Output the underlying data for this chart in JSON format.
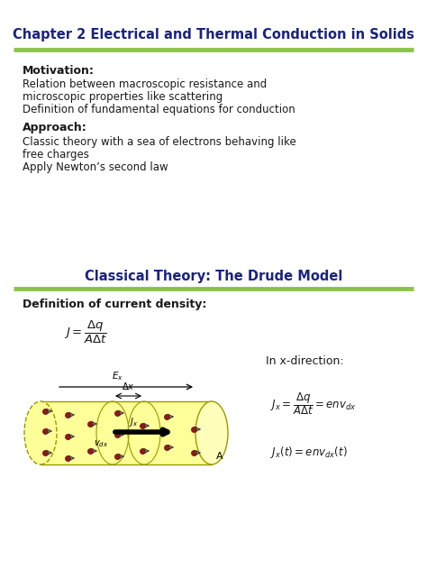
{
  "title": "Chapter 2 Electrical and Thermal Conduction in Solids",
  "title_color": "#1a237e",
  "title_fontsize": 10.5,
  "line_color": "#8bc34a",
  "section2_title": "Classical Theory: The Drude Model",
  "section2_color": "#1a237e",
  "section2_fontsize": 10.5,
  "motivation_header": "Motivation:",
  "motivation_lines": [
    "Relation between macroscopic resistance and",
    "microscopic properties like scattering",
    "Definition of fundamental equations for conduction"
  ],
  "approach_header": "Approach:",
  "approach_lines": [
    "Classic theory with a sea of electrons behaving like",
    "free charges",
    "Apply Newton’s second law"
  ],
  "body_fontsize": 8.5,
  "header_fontsize": 9.0,
  "def_text": "Definition of current density:",
  "in_x_dir": "In x-direction:",
  "bg_color": "#ffffff",
  "text_color": "#1a1a1a",
  "line_green": "#8bc34a"
}
